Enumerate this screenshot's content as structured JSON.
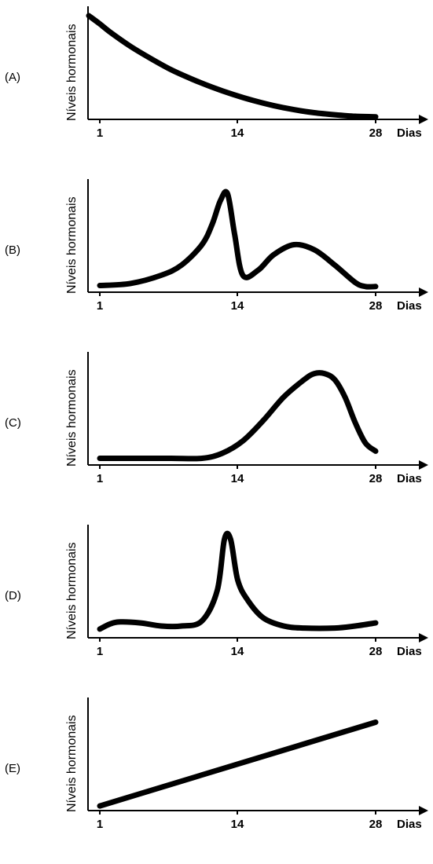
{
  "chart_data": [
    {
      "type": "line",
      "option": "(A)",
      "xlabel": "Dias",
      "ylabel": "Níveis hormonais",
      "xticks": [
        "1",
        "14",
        "28"
      ],
      "x": [
        0,
        1,
        2,
        4,
        6,
        8,
        10,
        12,
        14,
        16,
        18,
        20,
        22,
        24,
        26,
        28
      ],
      "values": [
        1.0,
        0.92,
        0.84,
        0.7,
        0.58,
        0.47,
        0.38,
        0.3,
        0.23,
        0.17,
        0.12,
        0.08,
        0.05,
        0.03,
        0.015,
        0.01
      ],
      "xlim": [
        0,
        33
      ],
      "ylim": [
        0,
        1.05
      ]
    },
    {
      "type": "line",
      "option": "(B)",
      "xlabel": "Dias",
      "ylabel": "Níveis hormonais",
      "xticks": [
        "1",
        "14",
        "28"
      ],
      "x": [
        1,
        4,
        7,
        9,
        11,
        12,
        12.8,
        13.5,
        14.2,
        15,
        16.5,
        18,
        20,
        22,
        24,
        26,
        27,
        28
      ],
      "values": [
        0.05,
        0.07,
        0.15,
        0.25,
        0.45,
        0.65,
        0.88,
        0.95,
        0.55,
        0.15,
        0.2,
        0.35,
        0.45,
        0.4,
        0.25,
        0.08,
        0.04,
        0.04
      ],
      "xlim": [
        -1,
        33
      ],
      "ylim": [
        0,
        1.05
      ]
    },
    {
      "type": "line",
      "option": "(C)",
      "xlabel": "Dias",
      "ylabel": "Níveis hormonais",
      "xticks": [
        "1",
        "14",
        "28"
      ],
      "x": [
        1,
        4,
        8,
        11,
        13,
        15,
        17,
        19,
        21,
        22,
        23,
        24,
        25,
        26,
        27,
        28
      ],
      "values": [
        0.05,
        0.05,
        0.05,
        0.05,
        0.1,
        0.22,
        0.42,
        0.65,
        0.82,
        0.88,
        0.88,
        0.82,
        0.65,
        0.4,
        0.2,
        0.12
      ],
      "xlim": [
        -1,
        33
      ],
      "ylim": [
        0,
        1.05
      ]
    },
    {
      "type": "line",
      "option": "(D)",
      "xlabel": "Dias",
      "ylabel": "Níveis hormonais",
      "xticks": [
        "1",
        "14",
        "28"
      ],
      "x": [
        1,
        2,
        3,
        5,
        7,
        9,
        11,
        12.5,
        13.2,
        13.8,
        14.5,
        15.5,
        17,
        19,
        21,
        24,
        26,
        28
      ],
      "values": [
        0.07,
        0.12,
        0.14,
        0.13,
        0.1,
        0.1,
        0.15,
        0.45,
        0.95,
        0.95,
        0.55,
        0.35,
        0.18,
        0.1,
        0.08,
        0.08,
        0.1,
        0.13
      ],
      "xlim": [
        -1,
        33
      ],
      "ylim": [
        0,
        1.05
      ]
    },
    {
      "type": "line",
      "option": "(E)",
      "xlabel": "Dias",
      "ylabel": "Níveis hormonais",
      "xticks": [
        "1",
        "14",
        "28"
      ],
      "x": [
        1,
        28
      ],
      "values": [
        0.03,
        0.85
      ],
      "xlim": [
        -1,
        33
      ],
      "ylim": [
        0,
        1.05
      ]
    }
  ]
}
